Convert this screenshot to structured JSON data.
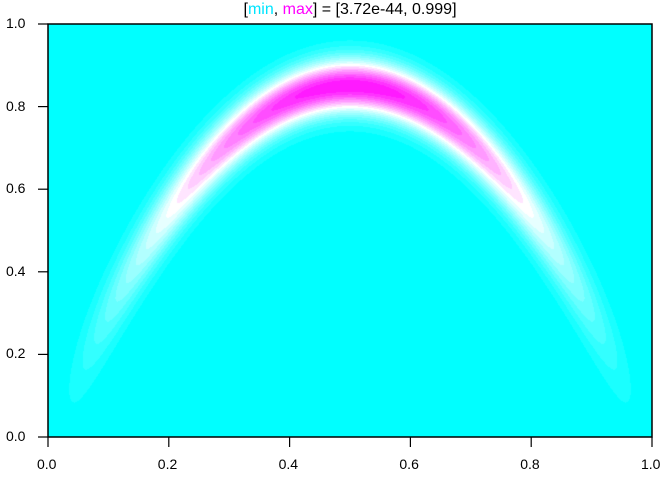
{
  "chart_data": {
    "type": "heatmap",
    "style": "filled-contour",
    "title_parts": {
      "open_bracket": "[",
      "min_label": "min",
      "separator": ", ",
      "max_label": "max",
      "rest": "] = [3.72e-44, 0.999]"
    },
    "value_range": [
      3.72e-44,
      0.999
    ],
    "colormap": {
      "low": "#00FFFF",
      "mid": "#FFFFFF",
      "high": "#FF00FF"
    },
    "xlim": [
      0.0,
      1.0
    ],
    "ylim": [
      0.0,
      1.0
    ],
    "x_ticks": [
      "0.0",
      "0.2",
      "0.4",
      "0.6",
      "0.8",
      "1.0"
    ],
    "y_ticks": [
      "0.0",
      "0.2",
      "0.4",
      "0.6",
      "0.8",
      "1.0"
    ],
    "xlabel": "",
    "ylabel": "",
    "grid": false,
    "ridge_peak": {
      "x": 0.5,
      "y": 0.85
    }
  }
}
